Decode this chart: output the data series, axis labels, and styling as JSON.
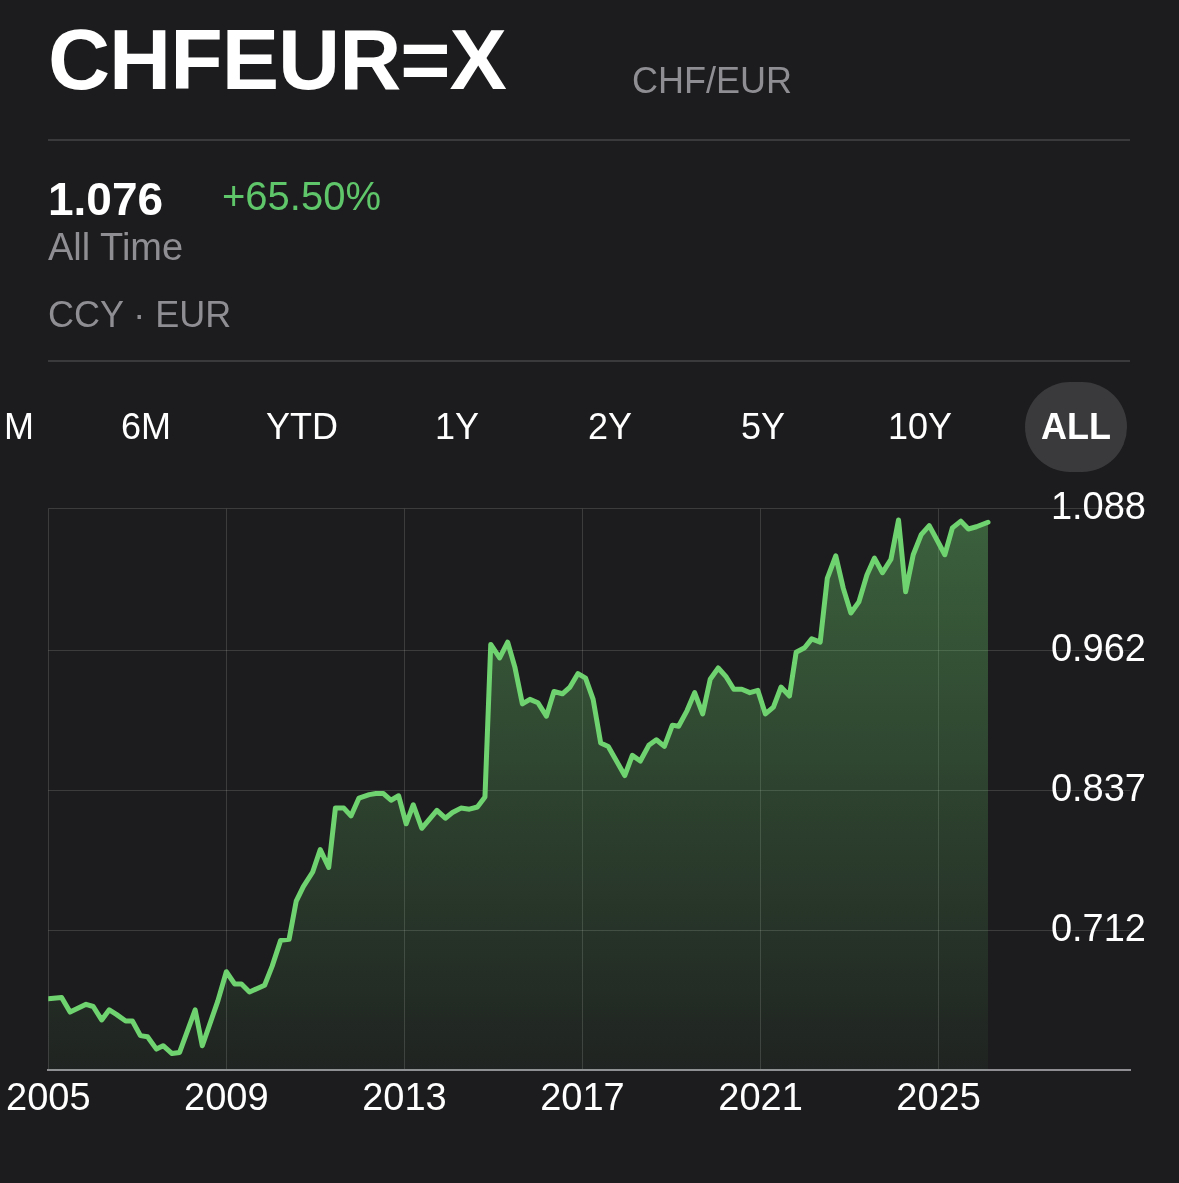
{
  "chart_data": {
    "type": "area",
    "title": "CHFEUR=X",
    "subtitle": "CHF/EUR",
    "annotations": [
      "1.076",
      "+65.50%",
      "All Time",
      "CCY · EUR",
      "M",
      "6M",
      "YTD",
      "1Y",
      "2Y",
      "5Y",
      "10Y",
      "ALL"
    ],
    "x": [
      2005.0,
      2005.3,
      2005.49,
      2005.85,
      2006.01,
      2006.2,
      2006.37,
      2006.53,
      2006.74,
      2006.89,
      2007.07,
      2007.23,
      2007.43,
      2007.58,
      2007.78,
      2007.95,
      2008.3,
      2008.46,
      2008.81,
      2009.0,
      2009.19,
      2009.34,
      2009.52,
      2009.86,
      2010.03,
      2010.22,
      2010.41,
      2010.57,
      2010.73,
      2010.94,
      2011.11,
      2011.3,
      2011.45,
      2011.64,
      2011.8,
      2011.98,
      2012.21,
      2012.36,
      2012.53,
      2012.7,
      2012.87,
      2013.04,
      2013.2,
      2013.39,
      2013.73,
      2013.92,
      2014.08,
      2014.27,
      2014.46,
      2014.64,
      2014.81,
      2014.94,
      2015.14,
      2015.32,
      2015.48,
      2015.65,
      2015.82,
      2016.0,
      2016.19,
      2016.36,
      2016.55,
      2016.72,
      2016.9,
      2017.07,
      2017.24,
      2017.41,
      2017.58,
      2017.95,
      2018.12,
      2018.3,
      2018.49,
      2018.66,
      2018.84,
      2019.02,
      2019.16,
      2019.35,
      2019.52,
      2019.7,
      2019.87,
      2020.05,
      2020.23,
      2020.4,
      2020.58,
      2020.76,
      2020.94,
      2021.11,
      2021.29,
      2021.46,
      2021.65,
      2021.8,
      2021.99,
      2022.15,
      2022.34,
      2022.5,
      2022.69,
      2022.86,
      2023.03,
      2023.21,
      2023.39,
      2023.56,
      2023.74,
      2023.93,
      2024.1,
      2024.26,
      2024.43,
      2024.61,
      2024.79,
      2024.98,
      2025.14,
      2025.31,
      2025.5,
      2025.67,
      2025.85,
      2026.11
    ],
    "series": [
      {
        "color": "#6fd46f",
        "values": [
          0.651,
          0.652,
          0.639,
          0.646,
          0.644,
          0.632,
          0.641,
          0.637,
          0.631,
          0.631,
          0.618,
          0.617,
          0.606,
          0.609,
          0.602,
          0.603,
          0.641,
          0.609,
          0.649,
          0.675,
          0.664,
          0.664,
          0.657,
          0.663,
          0.68,
          0.703,
          0.704,
          0.738,
          0.751,
          0.764,
          0.784,
          0.768,
          0.821,
          0.821,
          0.814,
          0.83,
          0.833,
          0.834,
          0.834,
          0.828,
          0.832,
          0.807,
          0.824,
          0.803,
          0.819,
          0.812,
          0.817,
          0.821,
          0.82,
          0.822,
          0.831,
          0.967,
          0.955,
          0.969,
          0.947,
          0.914,
          0.918,
          0.915,
          0.903,
          0.925,
          0.923,
          0.929,
          0.941,
          0.937,
          0.918,
          0.879,
          0.876,
          0.85,
          0.868,
          0.863,
          0.877,
          0.882,
          0.876,
          0.895,
          0.894,
          0.908,
          0.924,
          0.905,
          0.936,
          0.946,
          0.938,
          0.927,
          0.927,
          0.924,
          0.926,
          0.905,
          0.911,
          0.929,
          0.921,
          0.96,
          0.964,
          0.972,
          0.969,
          1.026,
          1.046,
          1.017,
          0.995,
          1.005,
          1.029,
          1.044,
          1.031,
          1.043,
          1.078,
          1.014,
          1.047,
          1.065,
          1.073,
          1.059,
          1.047,
          1.071,
          1.077,
          1.07,
          1.072,
          1.076
        ]
      }
    ],
    "xlim": [
      2005,
      2029.3
    ],
    "xticks": [
      2005,
      2009,
      2013,
      2017,
      2021,
      2025
    ],
    "ylim": [
      0.587,
      1.088
    ],
    "yticks": [
      0.712,
      0.837,
      0.962,
      1.088
    ],
    "grid": true,
    "marker": "none"
  }
}
